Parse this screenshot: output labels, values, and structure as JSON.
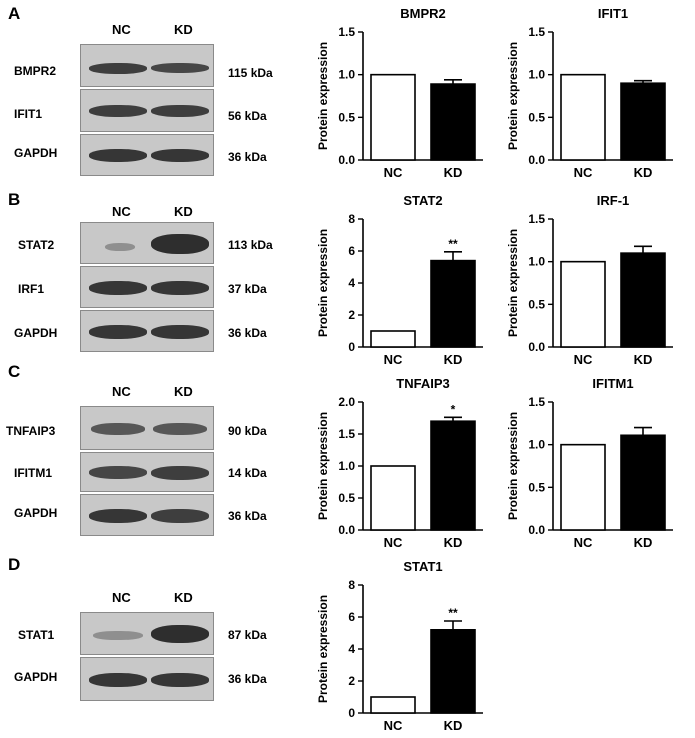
{
  "panels": [
    {
      "letter": "A",
      "lanes": [
        "NC",
        "KD"
      ],
      "blots": [
        {
          "protein": "BMPR2",
          "kda": "115 kDa"
        },
        {
          "protein": "IFIT1",
          "kda": "56 kDa"
        },
        {
          "protein": "GAPDH",
          "kda": "36 kDa"
        }
      ]
    },
    {
      "letter": "B",
      "lanes": [
        "NC",
        "KD"
      ],
      "blots": [
        {
          "protein": "STAT2",
          "kda": "113 kDa"
        },
        {
          "protein": "IRF1",
          "kda": "37 kDa"
        },
        {
          "protein": "GAPDH",
          "kda": "36 kDa"
        }
      ]
    },
    {
      "letter": "C",
      "lanes": [
        "NC",
        "KD"
      ],
      "blots": [
        {
          "protein": "TNFAIP3",
          "kda": "90 kDa"
        },
        {
          "protein": "IFITM1",
          "kda": "14 kDa"
        },
        {
          "protein": "GAPDH",
          "kda": "36 kDa"
        }
      ]
    },
    {
      "letter": "D",
      "lanes": [
        "NC",
        "KD"
      ],
      "blots": [
        {
          "protein": "STAT1",
          "kda": "87 kDa"
        },
        {
          "protein": "GAPDH",
          "kda": "36 kDa"
        }
      ]
    }
  ],
  "colors": {
    "nc_bar": "#ffffff",
    "kd_bar": "#000000",
    "blot_bg": "#c8c8c8",
    "band": "#262626"
  },
  "chart_data": [
    {
      "type": "bar",
      "title": "BMPR2",
      "ylabel": "Protein expression",
      "categories": [
        "NC",
        "KD"
      ],
      "values": [
        1.0,
        0.89
      ],
      "errors": [
        0,
        0.05
      ],
      "ylim": [
        0,
        1.5
      ],
      "yticks": [
        "0.0",
        "0.5",
        "1.0",
        "1.5"
      ],
      "significance": [
        "",
        ""
      ]
    },
    {
      "type": "bar",
      "title": "IFIT1",
      "ylabel": "Protein expression",
      "categories": [
        "NC",
        "KD"
      ],
      "values": [
        1.0,
        0.9
      ],
      "errors": [
        0,
        0.03
      ],
      "ylim": [
        0,
        1.5
      ],
      "yticks": [
        "0.0",
        "0.5",
        "1.0",
        "1.5"
      ],
      "significance": [
        "",
        ""
      ]
    },
    {
      "type": "bar",
      "title": "STAT2",
      "ylabel": "Protein expression",
      "categories": [
        "NC",
        "KD"
      ],
      "values": [
        1.0,
        5.4
      ],
      "errors": [
        0,
        0.55
      ],
      "ylim": [
        0,
        8
      ],
      "yticks": [
        "0",
        "2",
        "4",
        "6",
        "8"
      ],
      "significance": [
        "",
        "**"
      ]
    },
    {
      "type": "bar",
      "title": "IRF-1",
      "ylabel": "Protein expression",
      "categories": [
        "NC",
        "KD"
      ],
      "values": [
        1.0,
        1.1
      ],
      "errors": [
        0,
        0.08
      ],
      "ylim": [
        0,
        1.5
      ],
      "yticks": [
        "0.0",
        "0.5",
        "1.0",
        "1.5"
      ],
      "significance": [
        "",
        ""
      ]
    },
    {
      "type": "bar",
      "title": "TNFAIP3",
      "ylabel": "Protein expression",
      "categories": [
        "NC",
        "KD"
      ],
      "values": [
        1.0,
        1.7
      ],
      "errors": [
        0,
        0.06
      ],
      "ylim": [
        0,
        2.0
      ],
      "yticks": [
        "0.0",
        "0.5",
        "1.0",
        "1.5",
        "2.0"
      ],
      "significance": [
        "",
        "*"
      ]
    },
    {
      "type": "bar",
      "title": "IFITM1",
      "ylabel": "Protein expression",
      "categories": [
        "NC",
        "KD"
      ],
      "values": [
        1.0,
        1.11
      ],
      "errors": [
        0,
        0.09
      ],
      "ylim": [
        0,
        1.5
      ],
      "yticks": [
        "0.0",
        "0.5",
        "1.0",
        "1.5"
      ],
      "significance": [
        "",
        ""
      ]
    },
    {
      "type": "bar",
      "title": "STAT1",
      "ylabel": "Protein expression",
      "categories": [
        "NC",
        "KD"
      ],
      "values": [
        1.0,
        5.2
      ],
      "errors": [
        0,
        0.55
      ],
      "ylim": [
        0,
        8
      ],
      "yticks": [
        "0",
        "2",
        "4",
        "6",
        "8"
      ],
      "significance": [
        "",
        "**"
      ]
    }
  ]
}
